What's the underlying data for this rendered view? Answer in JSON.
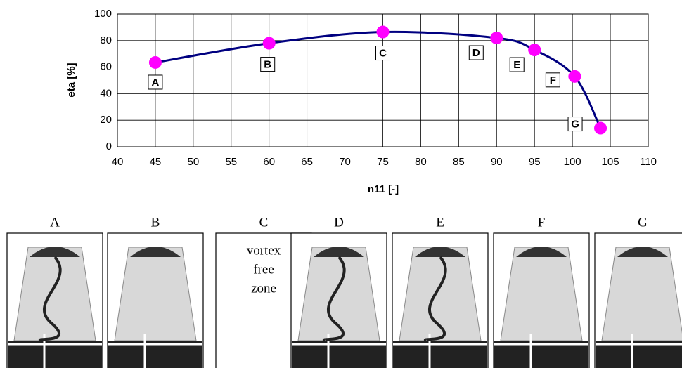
{
  "chart_data": {
    "type": "line",
    "xlabel": "n11 [-]",
    "ylabel": "eta [%]",
    "x": [
      45,
      60,
      75,
      90,
      95,
      100.3,
      103.7
    ],
    "series": [
      {
        "color": "#000080",
        "values": [
          63.5,
          78,
          86.5,
          82,
          73,
          53,
          14
        ]
      }
    ],
    "point_labels": [
      "A",
      "B",
      "C",
      "D",
      "E",
      "F",
      "G"
    ],
    "marker_color": "#ff00ff",
    "xlim": [
      40,
      110
    ],
    "xticks": [
      40,
      45,
      50,
      55,
      60,
      65,
      70,
      75,
      80,
      85,
      90,
      95,
      100,
      105,
      110
    ],
    "ylim": [
      0,
      100
    ],
    "yticks": [
      0,
      20,
      40,
      60,
      80,
      100
    ],
    "grid": true
  },
  "panels": [
    {
      "title": "A"
    },
    {
      "title": "B"
    },
    {
      "title": "C",
      "text": [
        "vortex",
        "free",
        "zone"
      ]
    },
    {
      "title": "D"
    },
    {
      "title": "E"
    },
    {
      "title": "F"
    },
    {
      "title": "G"
    }
  ]
}
